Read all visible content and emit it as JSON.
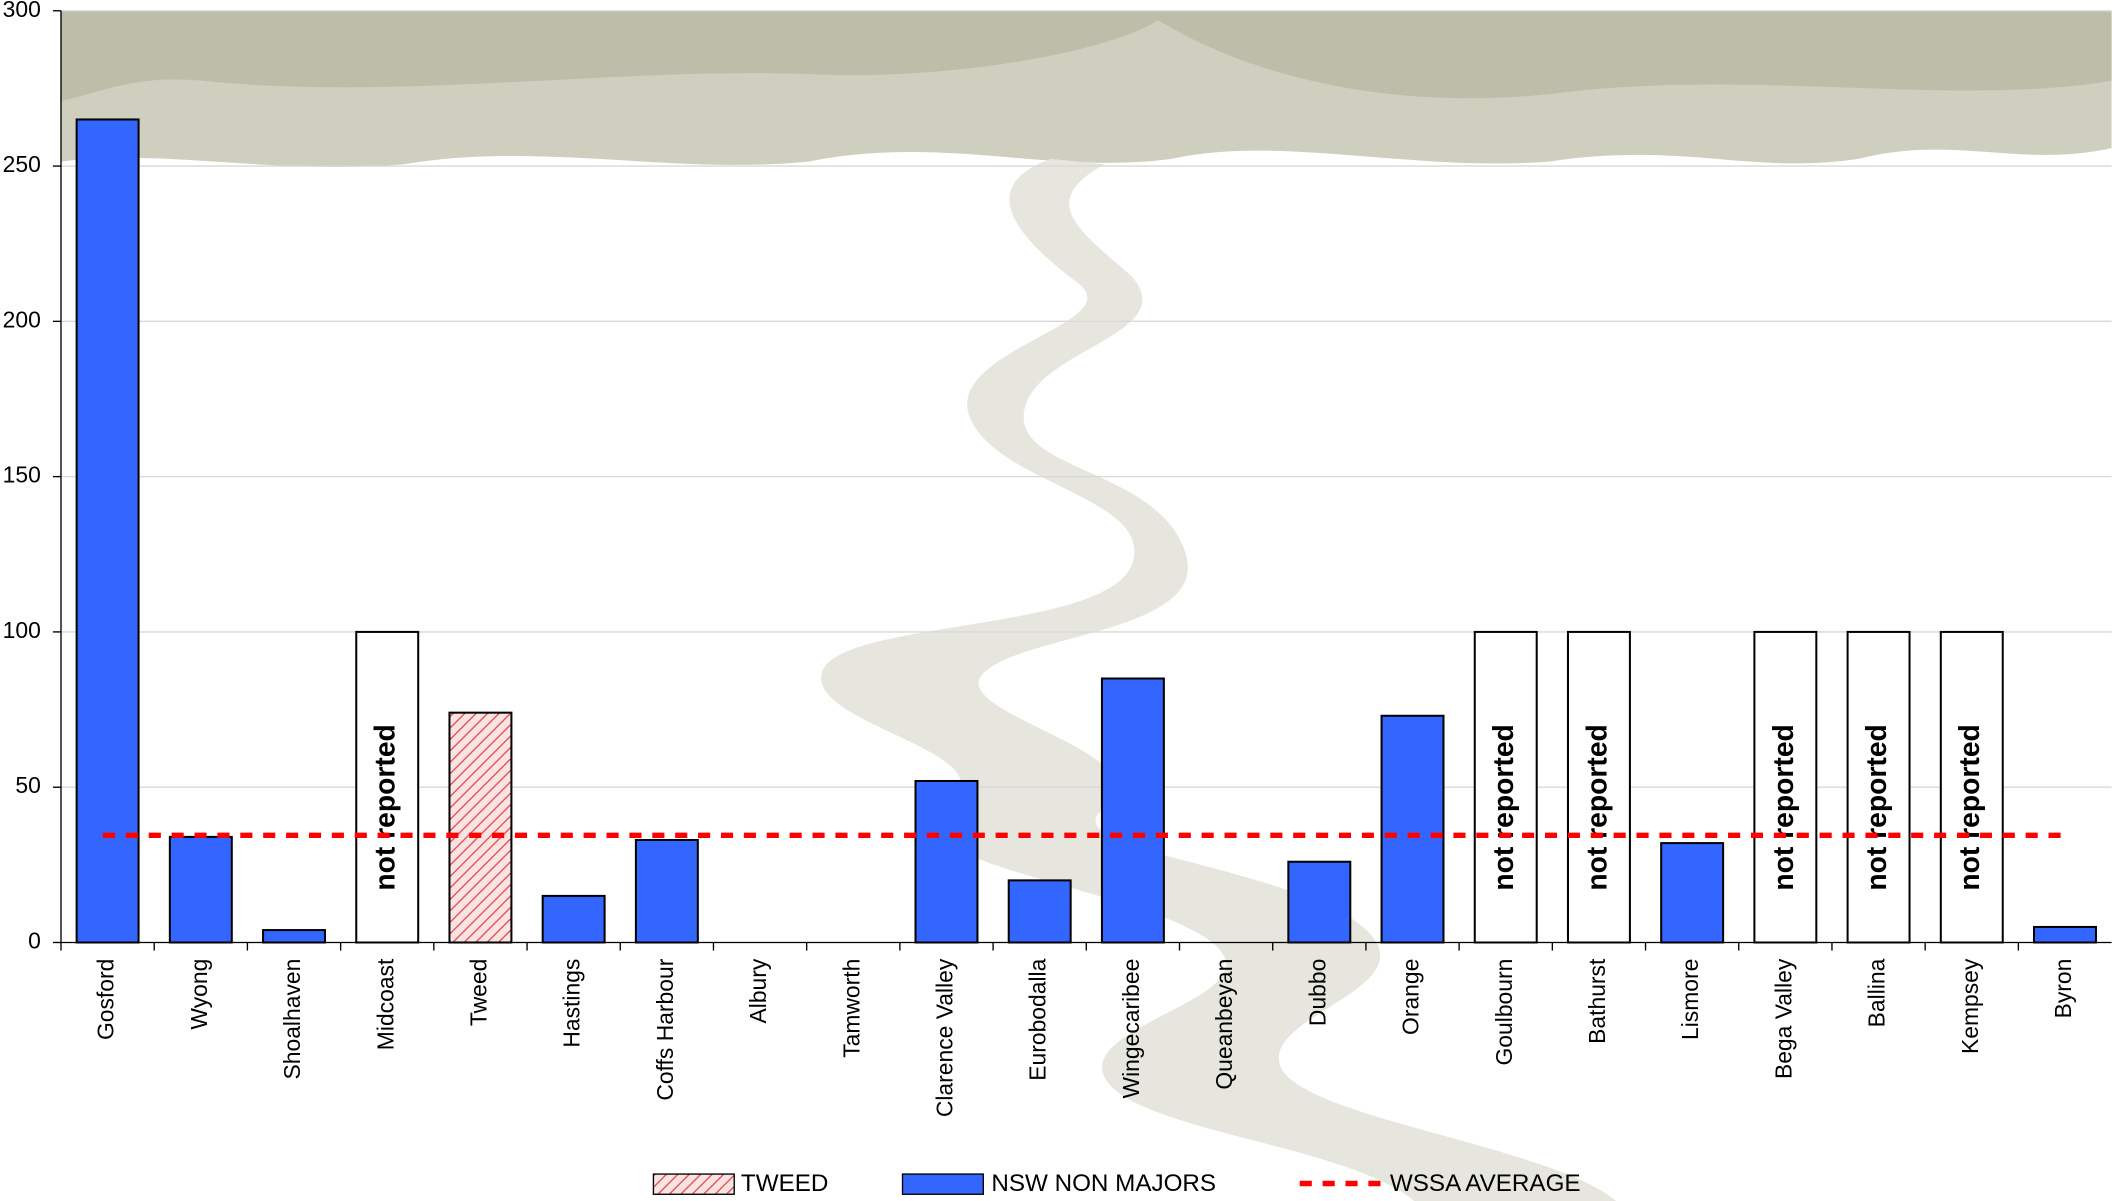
{
  "chart_data": {
    "type": "bar",
    "categories": [
      "Gosford",
      "Wyong",
      "Shoalhaven",
      "Midcoast",
      "Tweed",
      "Hastings",
      "Coffs Harbour",
      "Albury",
      "Tamworth",
      "Clarence Valley",
      "Eurobodalla",
      "Wingecaribee",
      "Queanbeyan",
      "Dubbo",
      "Orange",
      "Goulbourn",
      "Bathurst",
      "Lismore",
      "Bega Valley",
      "Ballina",
      "Kempsey",
      "Byron"
    ],
    "series": [
      {
        "name": "TWEED",
        "color": "#e05050",
        "pattern": "hatch",
        "values": [
          null,
          null,
          null,
          null,
          74,
          null,
          null,
          null,
          null,
          null,
          null,
          null,
          null,
          null,
          null,
          null,
          null,
          null,
          null,
          null,
          null,
          null
        ]
      },
      {
        "name": "NSW NON MAJORS",
        "color": "#3366ff",
        "values": [
          265,
          34,
          4,
          null,
          null,
          15,
          33,
          null,
          null,
          52,
          20,
          85,
          null,
          26,
          73,
          null,
          null,
          32,
          null,
          null,
          null,
          5
        ]
      }
    ],
    "reference_line": {
      "name": "WSSA AVERAGE",
      "value": 34.5,
      "color": "#ff0000"
    },
    "annotations": [
      {
        "category": "Midcoast",
        "text": "not reported",
        "value": 100
      },
      {
        "category": "Goulbourn",
        "text": "not reported",
        "value": 100
      },
      {
        "category": "Bathurst",
        "text": "not reported",
        "value": 100
      },
      {
        "category": "Bega Valley",
        "text": "not reported",
        "value": 100
      },
      {
        "category": "Ballina",
        "text": "not reported",
        "value": 100
      },
      {
        "category": "Kempsey",
        "text": "not reported",
        "value": 100
      }
    ],
    "ylim": [
      0,
      300
    ],
    "yticks": [
      0,
      50,
      100,
      150,
      200,
      250,
      300
    ],
    "grid": true
  }
}
